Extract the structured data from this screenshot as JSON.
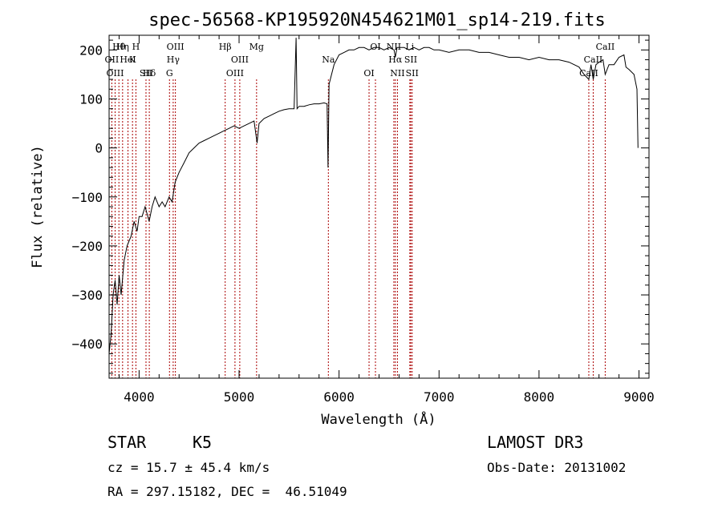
{
  "chart_data": {
    "type": "line",
    "title": "spec-56568-KP195920N454621M01_sp14-219.fits",
    "xlabel": "Wavelength (Å)",
    "ylabel": "Flux (relative)",
    "xlim": [
      3700,
      9100
    ],
    "ylim": [
      -470,
      230
    ],
    "xticks": [
      4000,
      5000,
      6000,
      7000,
      8000,
      9000
    ],
    "yticks": [
      -400,
      -300,
      -200,
      -100,
      0,
      100,
      200
    ],
    "series": [
      {
        "values": [
          [
            3700,
            -420
          ],
          [
            3720,
            -380
          ],
          [
            3740,
            -300
          ],
          [
            3760,
            -270
          ],
          [
            3780,
            -320
          ],
          [
            3800,
            -260
          ],
          [
            3820,
            -300
          ],
          [
            3850,
            -230
          ],
          [
            3880,
            -200
          ],
          [
            3920,
            -180
          ],
          [
            3950,
            -150
          ],
          [
            3980,
            -170
          ],
          [
            4000,
            -140
          ],
          [
            4030,
            -140
          ],
          [
            4060,
            -120
          ],
          [
            4100,
            -150
          ],
          [
            4130,
            -120
          ],
          [
            4160,
            -100
          ],
          [
            4200,
            -120
          ],
          [
            4230,
            -110
          ],
          [
            4260,
            -120
          ],
          [
            4300,
            -100
          ],
          [
            4330,
            -110
          ],
          [
            4360,
            -70
          ],
          [
            4400,
            -50
          ],
          [
            4450,
            -30
          ],
          [
            4500,
            -10
          ],
          [
            4550,
            0
          ],
          [
            4600,
            10
          ],
          [
            4650,
            15
          ],
          [
            4700,
            20
          ],
          [
            4750,
            25
          ],
          [
            4800,
            30
          ],
          [
            4850,
            35
          ],
          [
            4900,
            40
          ],
          [
            4950,
            45
          ],
          [
            5000,
            40
          ],
          [
            5050,
            45
          ],
          [
            5100,
            50
          ],
          [
            5150,
            55
          ],
          [
            5180,
            10
          ],
          [
            5200,
            50
          ],
          [
            5250,
            60
          ],
          [
            5300,
            65
          ],
          [
            5350,
            70
          ],
          [
            5400,
            75
          ],
          [
            5450,
            78
          ],
          [
            5500,
            80
          ],
          [
            5550,
            80
          ],
          [
            5570,
            225
          ],
          [
            5580,
            80
          ],
          [
            5600,
            85
          ],
          [
            5650,
            85
          ],
          [
            5700,
            88
          ],
          [
            5750,
            90
          ],
          [
            5800,
            90
          ],
          [
            5850,
            92
          ],
          [
            5880,
            90
          ],
          [
            5890,
            -40
          ],
          [
            5900,
            130
          ],
          [
            5950,
            170
          ],
          [
            6000,
            190
          ],
          [
            6050,
            195
          ],
          [
            6100,
            200
          ],
          [
            6150,
            200
          ],
          [
            6200,
            205
          ],
          [
            6250,
            205
          ],
          [
            6300,
            200
          ],
          [
            6350,
            205
          ],
          [
            6400,
            205
          ],
          [
            6450,
            200
          ],
          [
            6500,
            205
          ],
          [
            6550,
            200
          ],
          [
            6563,
            185
          ],
          [
            6580,
            205
          ],
          [
            6650,
            205
          ],
          [
            6700,
            200
          ],
          [
            6750,
            205
          ],
          [
            6800,
            200
          ],
          [
            6850,
            205
          ],
          [
            6900,
            205
          ],
          [
            6950,
            200
          ],
          [
            7000,
            200
          ],
          [
            7100,
            195
          ],
          [
            7200,
            200
          ],
          [
            7300,
            200
          ],
          [
            7400,
            195
          ],
          [
            7500,
            195
          ],
          [
            7600,
            190
          ],
          [
            7700,
            185
          ],
          [
            7800,
            185
          ],
          [
            7900,
            180
          ],
          [
            8000,
            185
          ],
          [
            8100,
            180
          ],
          [
            8200,
            180
          ],
          [
            8300,
            175
          ],
          [
            8400,
            165
          ],
          [
            8450,
            150
          ],
          [
            8498,
            140
          ],
          [
            8520,
            170
          ],
          [
            8542,
            140
          ],
          [
            8570,
            170
          ],
          [
            8600,
            175
          ],
          [
            8640,
            180
          ],
          [
            8662,
            150
          ],
          [
            8700,
            170
          ],
          [
            8750,
            170
          ],
          [
            8800,
            185
          ],
          [
            8850,
            190
          ],
          [
            8870,
            165
          ],
          [
            8900,
            160
          ],
          [
            8950,
            150
          ],
          [
            8980,
            120
          ],
          [
            8990,
            0
          ]
        ]
      }
    ],
    "lines": [
      {
        "label": "Hθ",
        "x": 3798
      },
      {
        "label": "K",
        "x": 3934
      },
      {
        "label": "Hδ",
        "x": 4102
      },
      {
        "label": "OIII",
        "x": 4363
      },
      {
        "label": "Hγ",
        "x": 4341
      },
      {
        "label": "G",
        "x": 4304
      },
      {
        "label": "Hβ",
        "x": 4861
      },
      {
        "label": "OIII",
        "x": 5007
      },
      {
        "label": "OIII",
        "x": 4959
      },
      {
        "label": "Mg",
        "x": 5175
      },
      {
        "label": "Na",
        "x": 5893
      },
      {
        "label": "OI",
        "x": 6300
      },
      {
        "label": "OI",
        "x": 6364
      },
      {
        "label": "Hα",
        "x": 6563
      },
      {
        "label": "NII",
        "x": 6584
      },
      {
        "label": "NII",
        "x": 6548
      },
      {
        "label": "SII",
        "x": 6717
      },
      {
        "label": "SII",
        "x": 6731
      },
      {
        "label": "Li",
        "x": 6708
      },
      {
        "label": "CaII",
        "x": 8542
      },
      {
        "label": "CaII",
        "x": 8498
      },
      {
        "label": "CaII",
        "x": 8662
      },
      {
        "label": "OII",
        "x": 3727
      },
      {
        "label": "OIII",
        "x": 3760
      },
      {
        "label": "Hη",
        "x": 3835
      },
      {
        "label": "HeI",
        "x": 3889
      },
      {
        "label": "SII",
        "x": 4069
      },
      {
        "label": "H",
        "x": 3968
      }
    ],
    "line_color": "#aa0000"
  },
  "info": {
    "class": "STAR",
    "subclass": "K5",
    "survey": "LAMOST DR3",
    "cz": "cz = 15.7 ± 45.4 km/s",
    "obs_date": "Obs-Date: 20131002",
    "coords": "RA = 297.15182, DEC =  46.51049"
  }
}
